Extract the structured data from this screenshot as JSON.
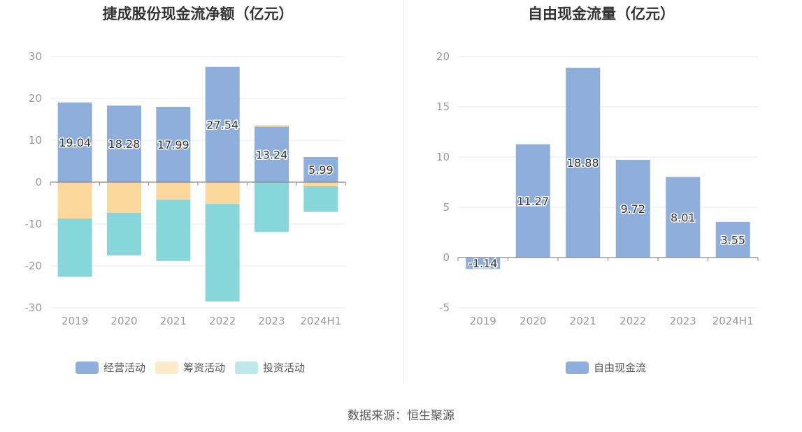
{
  "chart_data": [
    {
      "type": "bar",
      "stacked": true,
      "title": "捷成股份现金流净额（亿元）",
      "categories": [
        "2019",
        "2020",
        "2021",
        "2022",
        "2023",
        "2024H1"
      ],
      "ylim": [
        -30,
        30
      ],
      "yticks": [
        30,
        20,
        10,
        0,
        -10,
        -20,
        -30
      ],
      "grid": true,
      "legend_position": "bottom",
      "series": [
        {
          "name": "经营活动",
          "color": "#8eaedb",
          "values": [
            19.04,
            18.28,
            17.99,
            27.54,
            13.24,
            5.99
          ],
          "labels": [
            "19.04",
            "18.28",
            "17.99",
            "27.54",
            "13.24",
            "5.99"
          ]
        },
        {
          "name": "筹资活动",
          "color": "#fdd89d",
          "values": [
            -8.7,
            -7.3,
            -4.2,
            -5.2,
            0.4,
            -1.0
          ]
        },
        {
          "name": "投资活动",
          "color": "#87d6da",
          "values": [
            -13.9,
            -10.2,
            -14.6,
            -23.3,
            -11.9,
            -6.1
          ]
        }
      ]
    },
    {
      "type": "bar",
      "title": "自由现金流量（亿元）",
      "categories": [
        "2019",
        "2020",
        "2021",
        "2022",
        "2023",
        "2024H1"
      ],
      "ylim": [
        -5,
        20
      ],
      "yticks": [
        20,
        15,
        10,
        5,
        0,
        -5
      ],
      "grid": true,
      "legend_position": "bottom",
      "series": [
        {
          "name": "自由现金流",
          "color": "#8eaedb",
          "values": [
            -1.14,
            11.27,
            18.88,
            9.72,
            8.01,
            3.55
          ],
          "labels": [
            "-1.14",
            "11.27",
            "18.88",
            "9.72",
            "8.01",
            "3.55"
          ]
        }
      ]
    }
  ],
  "source": "数据来源：恒生聚源",
  "colors": {
    "axis_label": "#999999",
    "grid": "#e6e9f4",
    "zero_line": "#888888"
  }
}
